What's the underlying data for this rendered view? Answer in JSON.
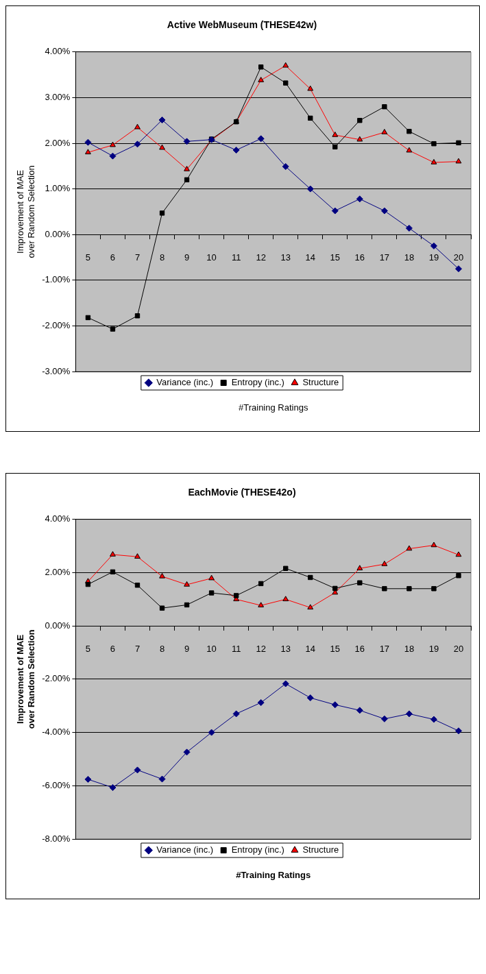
{
  "chart_data": [
    {
      "type": "line",
      "title": "Active WebMuseum (THESE42w)",
      "xlabel": "#Training Ratings",
      "ylabel": "Improvement of MAE over Random Selection",
      "categories": [
        "5",
        "6",
        "7",
        "8",
        "9",
        "10",
        "11",
        "12",
        "13",
        "14",
        "15",
        "16",
        "17",
        "18",
        "19",
        "20"
      ],
      "series": [
        {
          "name": "Variance (inc.)",
          "color": "#000080",
          "marker": "diamond",
          "values": [
            2.02,
            1.72,
            1.98,
            2.51,
            2.04,
            2.08,
            1.85,
            2.1,
            1.49,
            1.0,
            0.52,
            0.78,
            0.52,
            0.14,
            -0.25,
            -0.75
          ]
        },
        {
          "name": "Entropy (inc.)",
          "color": "#000000",
          "marker": "square",
          "values": [
            -1.82,
            -2.07,
            -1.78,
            0.47,
            1.2,
            2.09,
            2.47,
            3.67,
            3.32,
            2.55,
            1.92,
            2.5,
            2.8,
            2.26,
            1.99,
            2.01
          ]
        },
        {
          "name": "Structure",
          "color": "#ff0000",
          "marker": "triangle",
          "values": [
            1.8,
            1.96,
            2.35,
            1.9,
            1.43,
            2.07,
            2.47,
            3.38,
            3.7,
            3.19,
            2.18,
            2.08,
            2.24,
            1.84,
            1.58,
            1.6
          ]
        }
      ],
      "ylim": [
        -3,
        4
      ],
      "yticks": [
        {
          "value": -3,
          "label": "-3.00%"
        },
        {
          "value": -2,
          "label": "-2.00%"
        },
        {
          "value": -1,
          "label": "-1.00%"
        },
        {
          "value": 0,
          "label": "0.00%"
        },
        {
          "value": 1,
          "label": "1.00%"
        },
        {
          "value": 2,
          "label": "2.00%"
        },
        {
          "value": 3,
          "label": "3.00%"
        },
        {
          "value": 4,
          "label": "4.00%"
        }
      ],
      "grid": "y",
      "legend": "bottom"
    },
    {
      "type": "line",
      "title": "EachMovie (THESE42o)",
      "xlabel": "#Training Ratings",
      "ylabel": "Improvement of MAE over Random Selection",
      "categories": [
        "5",
        "6",
        "7",
        "8",
        "9",
        "10",
        "11",
        "12",
        "13",
        "14",
        "15",
        "16",
        "17",
        "18",
        "19",
        "20"
      ],
      "series": [
        {
          "name": "Variance (inc.)",
          "color": "#000080",
          "marker": "diamond",
          "values": [
            -5.76,
            -6.07,
            -5.41,
            -5.75,
            -4.74,
            -4.0,
            -3.3,
            -2.88,
            -2.17,
            -2.7,
            -2.96,
            -3.17,
            -3.49,
            -3.3,
            -3.51,
            -3.94
          ]
        },
        {
          "name": "Entropy (inc.)",
          "color": "#000000",
          "marker": "square",
          "values": [
            1.56,
            2.03,
            1.53,
            0.67,
            0.79,
            1.24,
            1.14,
            1.59,
            2.16,
            1.82,
            1.41,
            1.62,
            1.4,
            1.4,
            1.4,
            1.89
          ]
        },
        {
          "name": "Structure",
          "color": "#ff0000",
          "marker": "triangle",
          "values": [
            1.67,
            2.68,
            2.6,
            1.86,
            1.55,
            1.79,
            1.0,
            0.77,
            1.0,
            0.69,
            1.25,
            2.16,
            2.32,
            2.9,
            3.03,
            2.67
          ]
        }
      ],
      "ylim": [
        -8,
        4
      ],
      "yticks": [
        {
          "value": -8,
          "label": "-8.00%"
        },
        {
          "value": -6,
          "label": "-6.00%"
        },
        {
          "value": -4,
          "label": "-4.00%"
        },
        {
          "value": -2,
          "label": "-2.00%"
        },
        {
          "value": 0,
          "label": "0.00%"
        },
        {
          "value": 2,
          "label": "2.00%"
        },
        {
          "value": 4,
          "label": "4.00%"
        }
      ],
      "grid": "y",
      "legend": "bottom"
    }
  ]
}
